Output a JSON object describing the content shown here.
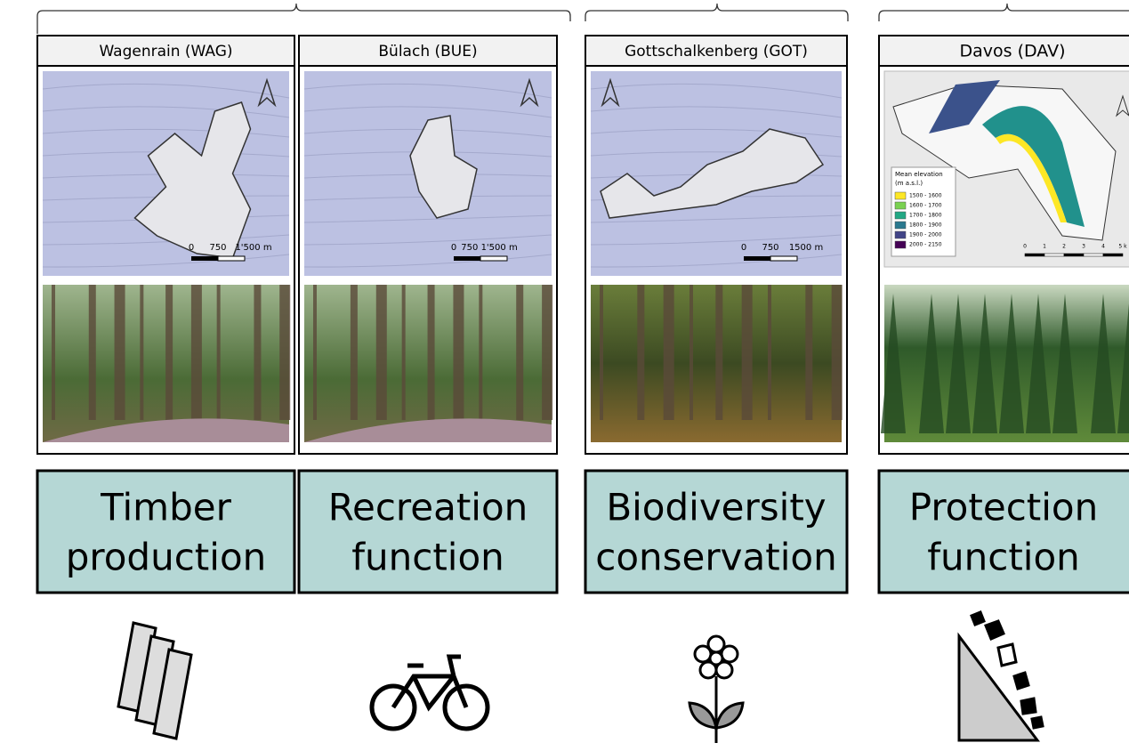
{
  "panels": [
    {
      "title": "Wagenrain (WAG)",
      "scale_labels": [
        "0",
        "750",
        "1'500 m"
      ],
      "function": [
        "Timber",
        "production"
      ]
    },
    {
      "title": "Bülach (BUE)",
      "scale_labels": [
        "0",
        "750 1'500 m"
      ],
      "function": [
        "Recreation",
        "function"
      ]
    },
    {
      "title": "Gottschalkenberg (GOT)",
      "scale_labels": [
        "0",
        "750",
        "1500 m"
      ],
      "function": [
        "Biodiversity",
        "conservation"
      ]
    },
    {
      "title": "Davos (DAV)",
      "scale_labels": [
        "0",
        "1",
        "2",
        "3",
        "4",
        "5 k"
      ],
      "function": [
        "Protection",
        "function"
      ]
    }
  ],
  "elevation_legend": {
    "title": "Mean elevation",
    "unit": "(m a.s.l.)",
    "items": [
      "1500 - 1600",
      "1600 - 1700",
      "1700 - 1800",
      "1800 - 1900",
      "1900 - 2000",
      "2000 - 2150"
    ]
  }
}
